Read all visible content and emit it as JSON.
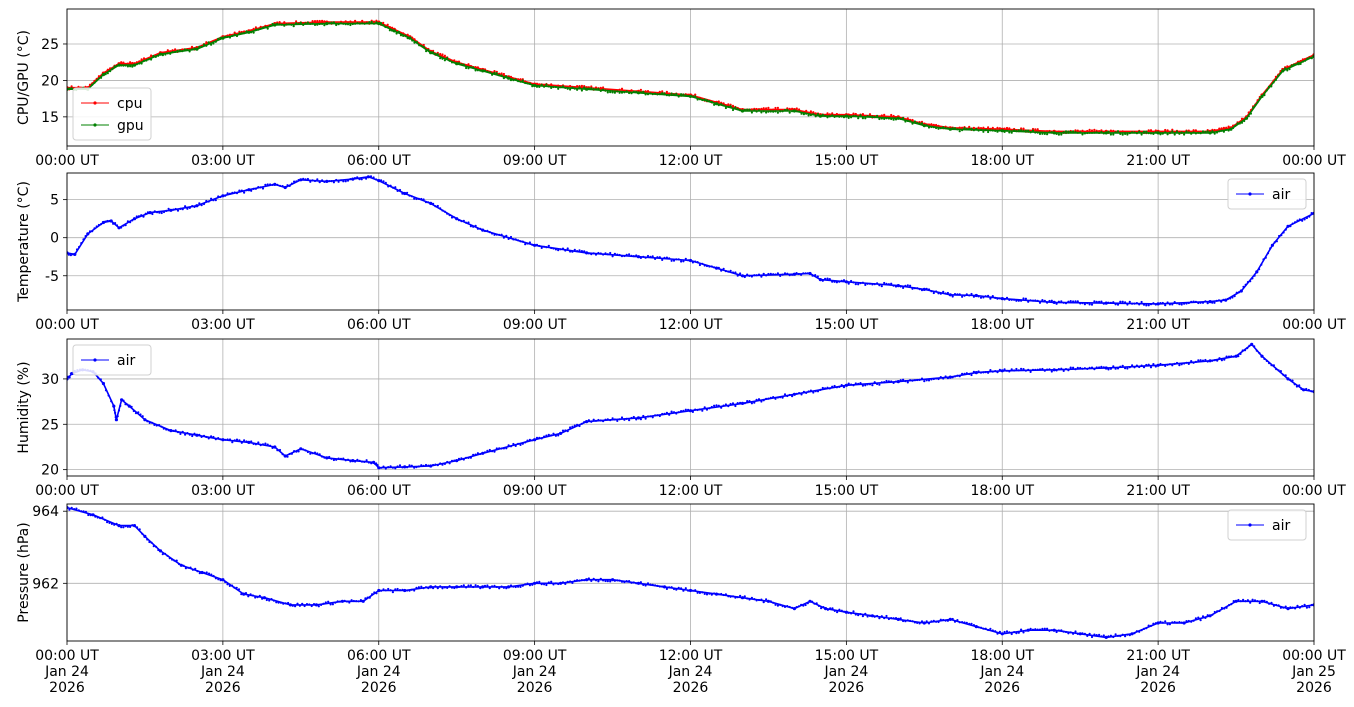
{
  "colors": {
    "cpu": "#ff0000",
    "gpu": "#008000",
    "air": "#0000ff",
    "grid": "#b0b0b0"
  },
  "x_ticks": [
    "00:00 UT",
    "03:00 UT",
    "06:00 UT",
    "09:00 UT",
    "12:00 UT",
    "15:00 UT",
    "18:00 UT",
    "21:00 UT",
    "00:00 UT"
  ],
  "x_ticks_bottom": [
    {
      "l1": "00:00 UT",
      "l2": "Jan 24",
      "l3": "2026"
    },
    {
      "l1": "03:00 UT",
      "l2": "Jan 24",
      "l3": "2026"
    },
    {
      "l1": "06:00 UT",
      "l2": "Jan 24",
      "l3": "2026"
    },
    {
      "l1": "09:00 UT",
      "l2": "Jan 24",
      "l3": "2026"
    },
    {
      "l1": "12:00 UT",
      "l2": "Jan 24",
      "l3": "2026"
    },
    {
      "l1": "15:00 UT",
      "l2": "Jan 24",
      "l3": "2026"
    },
    {
      "l1": "18:00 UT",
      "l2": "Jan 24",
      "l3": "2026"
    },
    {
      "l1": "21:00 UT",
      "l2": "Jan 24",
      "l3": "2026"
    },
    {
      "l1": "00:00 UT",
      "l2": "Jan 25",
      "l3": "2026"
    }
  ],
  "chart_data": [
    {
      "type": "line",
      "ylabel": "CPU/GPU (°C)",
      "x_unit": "hours since 00:00 UT Jan 24 2026",
      "xlim": [
        0,
        24
      ],
      "ylim": [
        11,
        29.8
      ],
      "yticks": [
        15,
        20,
        25
      ],
      "grid": true,
      "legend": "lower-left",
      "series": [
        {
          "name": "cpu",
          "color": "#ff0000",
          "x": [
            0,
            0.4,
            0.7,
            1.0,
            1.3,
            1.8,
            2.5,
            3.0,
            3.5,
            4.0,
            5.0,
            6.0,
            6.3,
            6.6,
            7.0,
            7.5,
            8.0,
            8.5,
            9.0,
            10.0,
            11.0,
            12.0,
            12.5,
            13.0,
            14.0,
            14.5,
            15.0,
            16.0,
            16.5,
            17.0,
            18.0,
            19.0,
            20.0,
            21.0,
            22.0,
            22.4,
            22.7,
            23.0,
            23.4,
            23.7,
            24.0
          ],
          "values": [
            19.0,
            19.0,
            21.0,
            22.3,
            22.3,
            23.8,
            24.5,
            26.0,
            26.8,
            27.8,
            28.0,
            28.0,
            27.0,
            26.0,
            24.0,
            22.5,
            21.5,
            20.5,
            19.5,
            19.0,
            18.5,
            18.0,
            17.0,
            16.0,
            16.0,
            15.3,
            15.3,
            15.0,
            14.0,
            13.5,
            13.3,
            13.0,
            13.0,
            13.0,
            13.0,
            13.5,
            15.0,
            18.0,
            21.5,
            22.5,
            23.5
          ]
        },
        {
          "name": "gpu",
          "color": "#008000",
          "x": [
            0,
            0.4,
            0.7,
            1.0,
            1.3,
            1.8,
            2.5,
            3.0,
            3.5,
            4.0,
            5.0,
            6.0,
            6.3,
            6.6,
            7.0,
            7.5,
            8.0,
            8.5,
            9.0,
            10.0,
            11.0,
            12.0,
            12.5,
            13.0,
            14.0,
            14.5,
            15.0,
            16.0,
            16.5,
            17.0,
            18.0,
            19.0,
            20.0,
            21.0,
            22.0,
            22.4,
            22.7,
            23.0,
            23.4,
            23.7,
            24.0
          ],
          "values": [
            18.8,
            18.8,
            20.8,
            22.1,
            22.1,
            23.6,
            24.3,
            25.8,
            26.6,
            27.6,
            27.8,
            27.8,
            26.8,
            25.8,
            23.8,
            22.3,
            21.3,
            20.3,
            19.3,
            18.8,
            18.3,
            17.8,
            16.8,
            15.8,
            15.8,
            15.1,
            15.1,
            14.8,
            13.8,
            13.3,
            13.1,
            12.8,
            12.8,
            12.8,
            12.8,
            13.3,
            14.8,
            17.8,
            21.3,
            22.3,
            23.3
          ]
        }
      ]
    },
    {
      "type": "line",
      "ylabel": "Temperature (°C)",
      "xlim": [
        0,
        24
      ],
      "ylim": [
        -9.5,
        8.5
      ],
      "yticks": [
        -5,
        0,
        5
      ],
      "grid": true,
      "legend": "upper-right",
      "series": [
        {
          "name": "air",
          "color": "#0000ff",
          "x": [
            0,
            0.15,
            0.4,
            0.7,
            0.85,
            1.0,
            1.3,
            1.6,
            2.0,
            2.5,
            3.0,
            3.5,
            4.0,
            4.2,
            4.5,
            5.0,
            5.5,
            5.8,
            6.0,
            6.5,
            7.0,
            7.5,
            8.0,
            9.0,
            10.0,
            11.0,
            12.0,
            12.5,
            13.0,
            14.0,
            14.3,
            14.5,
            15.0,
            16.0,
            16.5,
            17.0,
            17.5,
            18.0,
            19.0,
            20.0,
            21.0,
            22.0,
            22.3,
            22.6,
            22.9,
            23.2,
            23.5,
            24.0
          ],
          "values": [
            -2.0,
            -2.2,
            0.5,
            2.0,
            2.2,
            1.3,
            2.5,
            3.3,
            3.6,
            4.2,
            5.5,
            6.3,
            7.0,
            6.6,
            7.6,
            7.4,
            7.7,
            8.0,
            7.5,
            5.8,
            4.5,
            2.5,
            1.0,
            -1.0,
            -2.0,
            -2.5,
            -3.0,
            -4.0,
            -5.0,
            -4.8,
            -4.7,
            -5.5,
            -5.8,
            -6.3,
            -6.8,
            -7.5,
            -7.6,
            -8.0,
            -8.5,
            -8.6,
            -8.7,
            -8.4,
            -8.2,
            -7.0,
            -4.5,
            -1.0,
            1.5,
            3.2
          ]
        }
      ]
    },
    {
      "type": "line",
      "ylabel": "Humidity (%)",
      "xlim": [
        0,
        24
      ],
      "ylim": [
        19.3,
        34.4
      ],
      "yticks": [
        20,
        25,
        30
      ],
      "grid": true,
      "legend": "upper-left",
      "series": [
        {
          "name": "air",
          "color": "#0000ff",
          "x": [
            0,
            0.1,
            0.3,
            0.5,
            0.7,
            0.9,
            0.95,
            1.05,
            1.2,
            1.5,
            2.0,
            2.5,
            3.0,
            3.5,
            4.0,
            4.2,
            4.5,
            5.0,
            5.5,
            5.9,
            6.0,
            6.5,
            7.0,
            7.5,
            8.0,
            9.0,
            9.5,
            10.0,
            11.0,
            12.0,
            13.0,
            14.0,
            15.0,
            16.0,
            17.0,
            17.5,
            18.0,
            19.0,
            20.0,
            21.0,
            22.0,
            22.5,
            22.8,
            23.0,
            23.5,
            23.8,
            24.0
          ],
          "values": [
            30.0,
            30.6,
            31.0,
            30.8,
            29.5,
            27.0,
            25.5,
            27.7,
            27.0,
            25.5,
            24.3,
            23.8,
            23.3,
            23.0,
            22.5,
            21.5,
            22.3,
            21.3,
            21.0,
            20.8,
            20.2,
            20.3,
            20.4,
            21.0,
            21.8,
            23.3,
            24.0,
            25.3,
            25.7,
            26.5,
            27.3,
            28.3,
            29.3,
            29.7,
            30.2,
            30.7,
            30.9,
            31.0,
            31.2,
            31.5,
            32.0,
            32.5,
            33.8,
            32.5,
            30.0,
            28.8,
            28.6
          ]
        }
      ]
    },
    {
      "type": "line",
      "ylabel": "Pressure (hPa)",
      "xlim": [
        0,
        24
      ],
      "ylim": [
        960.4,
        964.2
      ],
      "yticks": [
        962,
        964
      ],
      "grid": true,
      "legend": "upper-right",
      "series": [
        {
          "name": "air",
          "color": "#0000ff",
          "x": [
            0,
            0.5,
            1.0,
            1.3,
            1.5,
            1.8,
            2.2,
            2.6,
            3.0,
            3.4,
            3.8,
            4.3,
            4.8,
            5.3,
            5.7,
            6.0,
            6.5,
            7.0,
            7.5,
            8.0,
            8.5,
            9.0,
            9.5,
            10.0,
            10.5,
            11.0,
            11.5,
            12.0,
            12.5,
            13.0,
            13.5,
            14.0,
            14.3,
            14.6,
            15.0,
            15.5,
            16.0,
            16.5,
            17.0,
            17.5,
            18.0,
            18.5,
            19.0,
            19.5,
            20.0,
            20.5,
            21.0,
            21.5,
            22.0,
            22.5,
            23.0,
            23.5,
            24.0
          ],
          "values": [
            964.1,
            963.9,
            963.6,
            963.6,
            963.3,
            962.9,
            962.5,
            962.3,
            962.1,
            961.7,
            961.6,
            961.4,
            961.4,
            961.5,
            961.5,
            961.8,
            961.8,
            961.9,
            961.9,
            961.9,
            961.9,
            962.0,
            962.0,
            962.1,
            962.1,
            962.0,
            961.9,
            961.8,
            961.7,
            961.6,
            961.5,
            961.3,
            961.5,
            961.3,
            961.2,
            961.1,
            961.0,
            960.9,
            961.0,
            960.8,
            960.6,
            960.7,
            960.7,
            960.6,
            960.5,
            960.6,
            960.9,
            960.9,
            961.1,
            961.5,
            961.5,
            961.3,
            961.4
          ]
        }
      ]
    }
  ]
}
